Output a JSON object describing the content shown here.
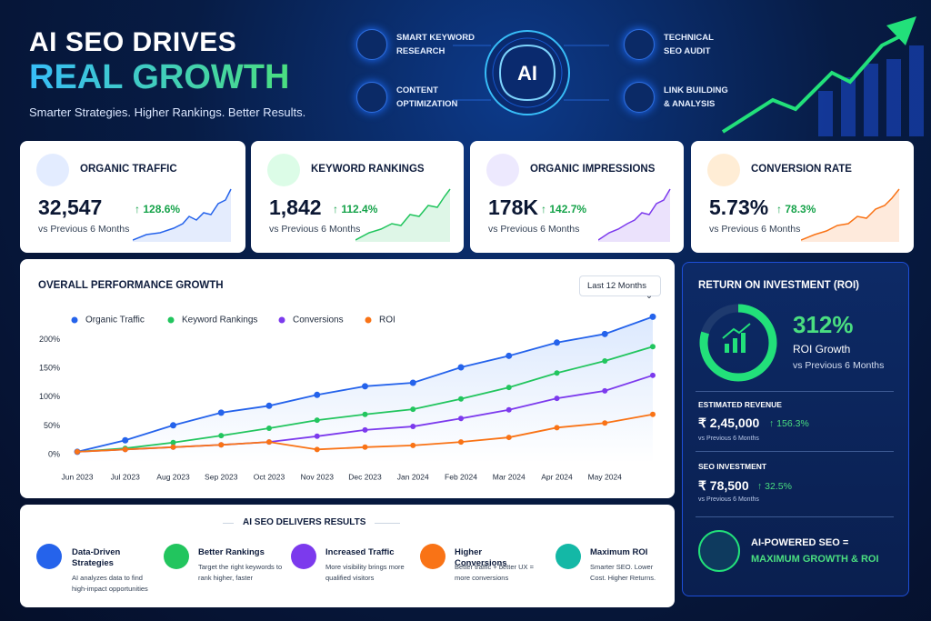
{
  "header": {
    "title_line1": "AI SEO DRIVES",
    "title_line2": "REAL GROWTH",
    "subtitle": "Smarter Strategies. Higher Rankings. Better Results.",
    "center_badge": "AI",
    "features": [
      {
        "label": "SMART KEYWORD RESEARCH"
      },
      {
        "label": "CONTENT OPTIMIZATION"
      },
      {
        "label": "TECHNICAL SEO AUDIT"
      },
      {
        "label": "LINK BUILDING & ANALYSIS"
      }
    ]
  },
  "kpis": [
    {
      "label": "ORGANIC TRAFFIC",
      "value": "32,547",
      "change": "128.6%",
      "note": "vs Previous 6 Months"
    },
    {
      "label": "KEYWORD RANKINGS",
      "value": "1,842",
      "change": "112.4%",
      "note": "vs Previous 6 Months"
    },
    {
      "label": "ORGANIC IMPRESSIONS",
      "value": "178K",
      "change": "142.7%",
      "note": "vs Previous 6 Months"
    },
    {
      "label": "CONVERSION RATE",
      "value": "5.73%",
      "change": "78.3%",
      "note": "vs Previous 6 Months"
    }
  ],
  "chart_data": {
    "type": "line",
    "title": "OVERALL PERFORMANCE GROWTH",
    "filter": "Last 12 Months",
    "categories": [
      "Jun 2023",
      "Jul 2023",
      "Aug 2023",
      "Sep 2023",
      "Oct 2023",
      "Nov 2023",
      "Dec 2023",
      "Jan 2024",
      "Feb 2024",
      "Mar 2024",
      "Apr 2024",
      "May 2024",
      null
    ],
    "series": [
      {
        "name": "Organic Traffic",
        "color": "#2563eb",
        "values": [
          5,
          25,
          51,
          73,
          85,
          104,
          119,
          125,
          152,
          172,
          195,
          210,
          240
        ]
      },
      {
        "name": "Keyword Rankings",
        "color": "#22c55e",
        "values": [
          5,
          11,
          21,
          33,
          46,
          60,
          70,
          79,
          97,
          117,
          142,
          163,
          188
        ]
      },
      {
        "name": "Conversions",
        "color": "#7c3aed",
        "values": [
          5,
          9,
          13,
          17,
          22,
          32,
          43,
          49,
          63,
          78,
          98,
          111,
          138
        ]
      },
      {
        "name": "ROI",
        "color": "#f97316",
        "values": [
          5,
          9,
          13,
          17,
          22,
          9,
          13,
          16,
          22,
          30,
          47,
          55,
          70
        ]
      }
    ],
    "ylim": [
      -15,
      245
    ],
    "yticks": [
      {
        "value": 0,
        "label": "0%"
      },
      {
        "value": 50,
        "label": "50%"
      },
      {
        "value": 100,
        "label": "100%"
      },
      {
        "value": 150,
        "label": "150%"
      },
      {
        "value": 200,
        "label": "200%"
      }
    ],
    "grid": false
  },
  "roi_panel": {
    "title": "RETURN ON INVESTMENT (ROI)",
    "roi_value": "312%",
    "roi_label": "ROI Growth",
    "roi_note": "vs Previous 6 Months",
    "revenue_label": "ESTIMATED REVENUE",
    "revenue_value": "₹ 2,45,000",
    "revenue_change": "156.3%",
    "revenue_note": "vs Previous 6 Months",
    "investment_label": "SEO INVESTMENT",
    "investment_value": "₹ 78,500",
    "investment_change": "32.5%",
    "investment_note": "vs Previous 6 Months",
    "footer_line1": "AI-POWERED SEO =",
    "footer_line2": "MAXIMUM GROWTH & ROI"
  },
  "results": {
    "title": "AI SEO DELIVERS RESULTS",
    "items": [
      {
        "title": "Data-Driven Strategies",
        "description": "AI analyzes data to find high-impact opportunities"
      },
      {
        "title": "Better Rankings",
        "description": "Target the right keywords to rank higher, faster"
      },
      {
        "title": "Increased Traffic",
        "description": "More visibility brings more qualified visitors"
      },
      {
        "title": "Higher Conversions",
        "description": "Better traffic + better UX = more conversions"
      },
      {
        "title": "Maximum ROI",
        "description": "Smarter SEO. Lower Cost. Higher Returns."
      }
    ]
  }
}
